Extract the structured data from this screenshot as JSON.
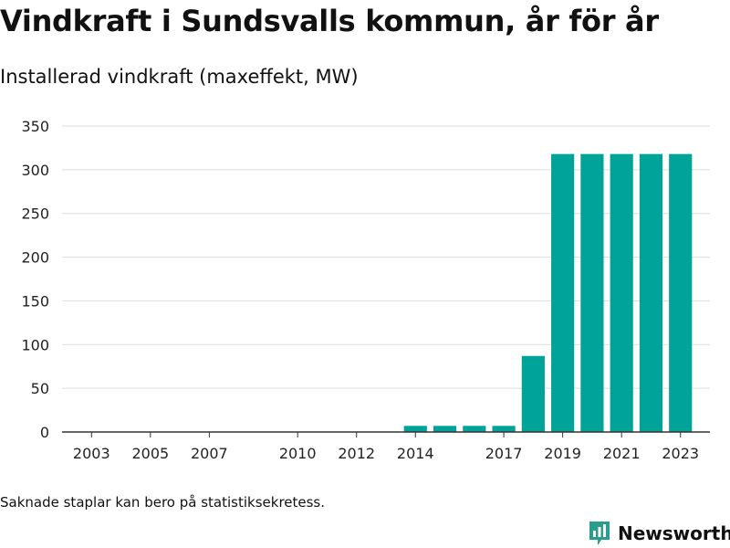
{
  "header": {
    "title": "Vindkraft i Sundsvalls kommun, år för år",
    "subtitle": "Installerad vindkraft (maxeffekt, MW)"
  },
  "footer": {
    "note": "Saknade staplar kan bero på statistiksekretess.",
    "brand": "Newsworthy"
  },
  "colors": {
    "bar": "#00A398",
    "grid": "#dddddd",
    "axis": "#333333",
    "text": "#222222",
    "brand": "#2a9d8f"
  },
  "chart_data": {
    "type": "bar",
    "ylim": [
      0,
      350
    ],
    "yticks": [
      0,
      50,
      100,
      150,
      200,
      250,
      300,
      350
    ],
    "xlim": [
      2002,
      2024
    ],
    "xticks": [
      2003,
      2005,
      2007,
      2010,
      2012,
      2014,
      2017,
      2019,
      2021,
      2023
    ],
    "grid": true,
    "categories": [
      "2014",
      "2015",
      "2016",
      "2017",
      "2018",
      "2019",
      "2020",
      "2021",
      "2022",
      "2023"
    ],
    "x": [
      2014,
      2015,
      2016,
      2017,
      2018,
      2019,
      2020,
      2021,
      2022,
      2023
    ],
    "values": [
      7,
      7,
      7,
      7,
      87,
      318,
      318,
      318,
      318,
      318
    ]
  }
}
